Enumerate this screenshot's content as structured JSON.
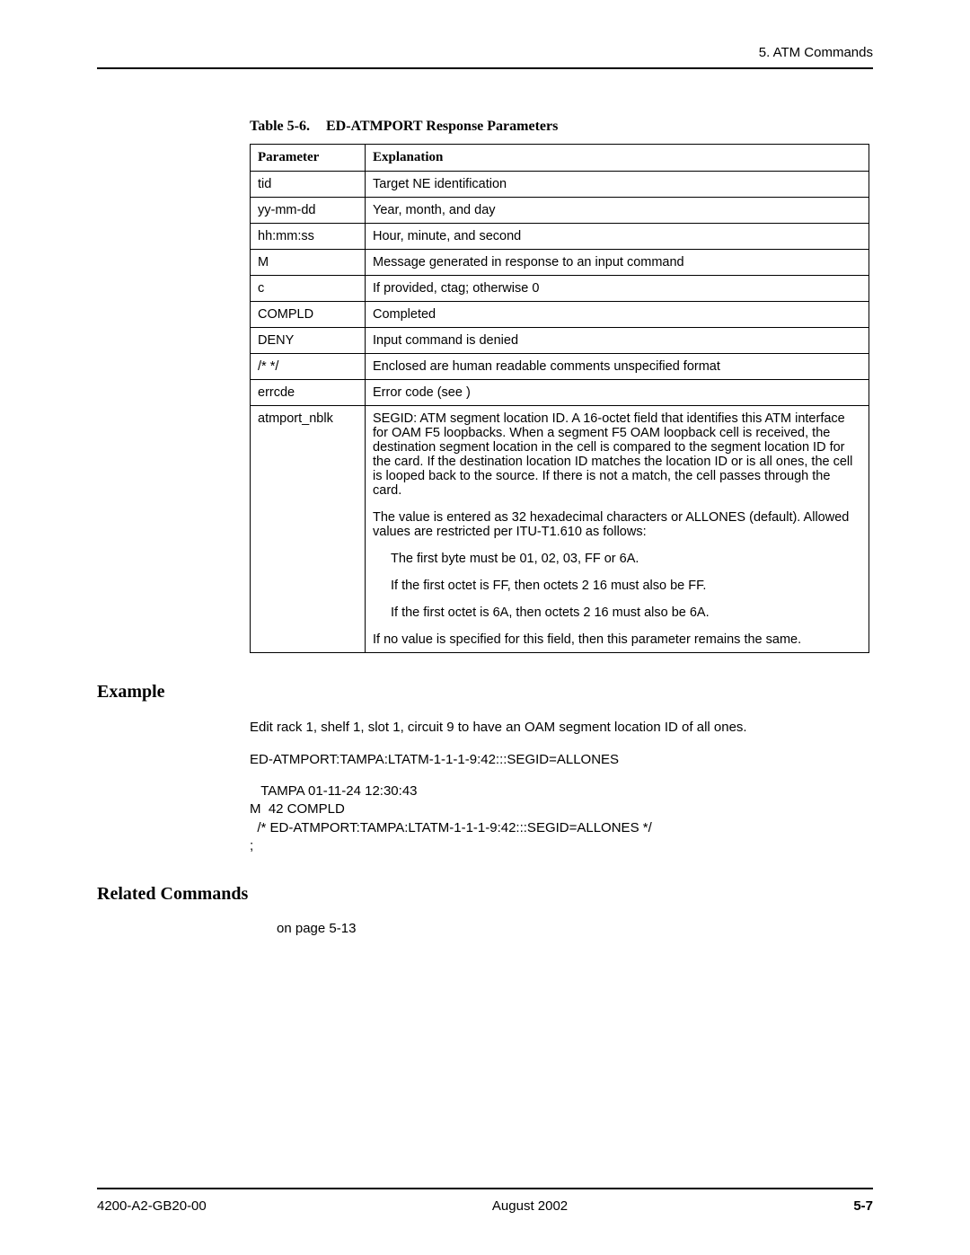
{
  "header": {
    "section": "5. ATM Commands"
  },
  "table": {
    "caption_label": "Table 5-6.",
    "caption_title": "ED-ATMPORT Response Parameters",
    "col_param": "Parameter",
    "col_expl": "Explanation",
    "rows": [
      {
        "param": "tid",
        "expl": "Target NE identification"
      },
      {
        "param": "yy-mm-dd",
        "expl": "Year, month, and day"
      },
      {
        "param": "hh:mm:ss",
        "expl": "Hour, minute, and second"
      },
      {
        "param": "M",
        "expl": "Message generated in response to an input command"
      },
      {
        "param": "c",
        "expl": "If provided, ctag; otherwise 0"
      },
      {
        "param": "COMPLD",
        "expl": "Completed"
      },
      {
        "param": "DENY",
        "expl": "Input command is denied"
      },
      {
        "param": "/* */",
        "expl": "Enclosed are human readable comments    unspecified format"
      },
      {
        "param": "errcde",
        "expl": "Error code (see                                              )"
      }
    ],
    "last": {
      "param": "atmport_nblk",
      "p1": "SEGID: ATM segment location ID. A 16-octet field that identifies this ATM interface for OAM F5 loopbacks. When a segment F5 OAM loopback cell is received, the destination segment location in the cell is compared to the segment location ID for the card. If the destination location ID matches the location ID or is all ones, the cell is looped back to the source. If there is not a match, the cell passes through the card.",
      "p2": "The value is entered as 32 hexadecimal characters or ALLONES (default). Allowed values are restricted per ITU-T1.610 as follows:",
      "b1": "The first byte must be 01, 02, 03, FF or 6A.",
      "b2": "If the first octet is FF, then octets 2  16 must also be FF.",
      "b3": "If the first octet is 6A, then octets 2  16 must also be 6A.",
      "p3": "If no value is specified for this field, then this parameter remains the same."
    }
  },
  "example": {
    "heading": "Example",
    "intro": "Edit rack 1, shelf 1, slot 1, circuit 9 to have an OAM segment location ID of all ones.",
    "cmd": "ED-ATMPORT:TAMPA:LTATM-1-1-1-9:42:::SEGID=ALLONES",
    "resp": "   TAMPA 01-11-24 12:30:43\nM  42 COMPLD\n  /* ED-ATMPORT:TAMPA:LTATM-1-1-1-9:42:::SEGID=ALLONES */\n;"
  },
  "related": {
    "heading": "Related Commands",
    "text": "on page 5-13"
  },
  "footer": {
    "doc": "4200-A2-GB20-00",
    "date": "August 2002",
    "page": "5-7"
  }
}
